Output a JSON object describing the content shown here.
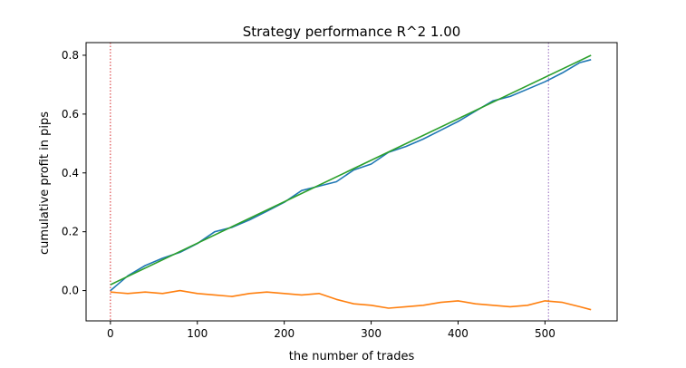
{
  "chart_data": {
    "type": "line",
    "title": "Strategy performance R^2 1.00",
    "xlabel": "the number of trades",
    "ylabel": "cumulative profit in pips",
    "xlim": [
      -28,
      583
    ],
    "ylim": [
      -0.103,
      0.843
    ],
    "xticks": [
      0,
      100,
      200,
      300,
      400,
      500
    ],
    "yticks": [
      0.0,
      0.2,
      0.4,
      0.6,
      0.8
    ],
    "ytick_labels": [
      "0.0",
      "0.2",
      "0.4",
      "0.6",
      "0.8"
    ],
    "grid": false,
    "legend": "none",
    "vlines": [
      {
        "x": 0,
        "color": "#d62728",
        "style": "dotted"
      },
      {
        "x": 504,
        "color": "#9467bd",
        "style": "dotted"
      }
    ],
    "series": [
      {
        "color": "#1f77b4",
        "x": [
          0,
          20,
          40,
          60,
          80,
          100,
          120,
          140,
          160,
          180,
          200,
          220,
          240,
          260,
          280,
          300,
          320,
          340,
          360,
          380,
          400,
          420,
          440,
          460,
          480,
          500,
          520,
          540,
          553
        ],
        "y": [
          0.0,
          0.05,
          0.085,
          0.11,
          0.13,
          0.16,
          0.2,
          0.215,
          0.24,
          0.27,
          0.3,
          0.34,
          0.355,
          0.37,
          0.41,
          0.43,
          0.47,
          0.49,
          0.515,
          0.545,
          0.575,
          0.61,
          0.645,
          0.66,
          0.685,
          0.71,
          0.74,
          0.775,
          0.785
        ]
      },
      {
        "color": "#ff7f0e",
        "x": [
          0,
          20,
          40,
          60,
          80,
          100,
          120,
          140,
          160,
          180,
          200,
          220,
          240,
          260,
          280,
          300,
          320,
          340,
          360,
          380,
          400,
          420,
          440,
          460,
          480,
          500,
          520,
          540,
          553
        ],
        "y": [
          -0.005,
          -0.01,
          -0.005,
          -0.01,
          0.0,
          -0.01,
          -0.015,
          -0.02,
          -0.01,
          -0.005,
          -0.01,
          -0.015,
          -0.01,
          -0.03,
          -0.045,
          -0.05,
          -0.06,
          -0.055,
          -0.05,
          -0.04,
          -0.035,
          -0.045,
          -0.05,
          -0.055,
          -0.05,
          -0.035,
          -0.04,
          -0.055,
          -0.065
        ]
      },
      {
        "color": "#2ca02c",
        "x": [
          0,
          553
        ],
        "y": [
          0.02,
          0.8
        ]
      }
    ]
  }
}
